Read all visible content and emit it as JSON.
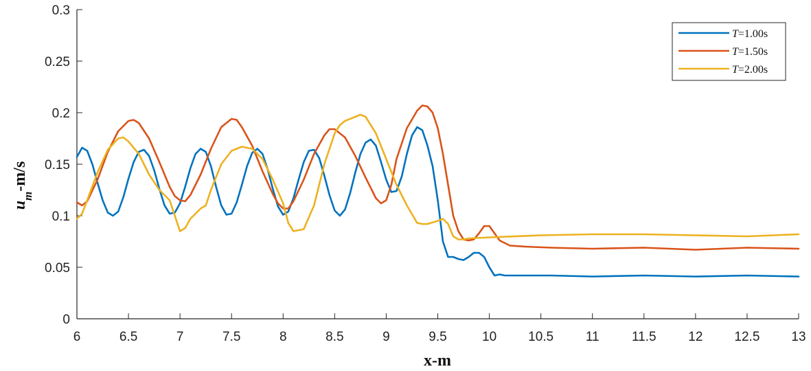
{
  "chart_data": {
    "type": "line",
    "title": "",
    "xlabel": "x-m",
    "ylabel": {
      "main": "u",
      "sub": "m",
      "unit": "-m/s"
    },
    "xlim": [
      6,
      13
    ],
    "ylim": [
      0,
      0.3
    ],
    "x_ticks": [
      "6",
      "6.5",
      "7",
      "7.5",
      "8",
      "8.5",
      "9",
      "9.5",
      "10",
      "10.5",
      "11",
      "11.5",
      "12",
      "12.5",
      "13"
    ],
    "y_ticks": [
      "0",
      "0.05",
      "0.1",
      "0.15",
      "0.2",
      "0.25",
      "0.3"
    ],
    "grid": false,
    "legend_position": "top-right",
    "series": [
      {
        "name": "T=1.00s",
        "legend_var": "T",
        "legend_val": "=1.00s",
        "color": "#0072BD",
        "points": [
          [
            6.0,
            0.157
          ],
          [
            6.05,
            0.166
          ],
          [
            6.1,
            0.163
          ],
          [
            6.15,
            0.15
          ],
          [
            6.2,
            0.132
          ],
          [
            6.25,
            0.115
          ],
          [
            6.3,
            0.103
          ],
          [
            6.35,
            0.1
          ],
          [
            6.4,
            0.104
          ],
          [
            6.45,
            0.118
          ],
          [
            6.5,
            0.136
          ],
          [
            6.55,
            0.152
          ],
          [
            6.6,
            0.162
          ],
          [
            6.65,
            0.164
          ],
          [
            6.7,
            0.158
          ],
          [
            6.75,
            0.144
          ],
          [
            6.8,
            0.126
          ],
          [
            6.85,
            0.11
          ],
          [
            6.9,
            0.102
          ],
          [
            6.95,
            0.103
          ],
          [
            7.0,
            0.112
          ],
          [
            7.05,
            0.128
          ],
          [
            7.1,
            0.146
          ],
          [
            7.15,
            0.16
          ],
          [
            7.2,
            0.165
          ],
          [
            7.25,
            0.162
          ],
          [
            7.3,
            0.148
          ],
          [
            7.35,
            0.128
          ],
          [
            7.4,
            0.11
          ],
          [
            7.45,
            0.101
          ],
          [
            7.5,
            0.102
          ],
          [
            7.55,
            0.113
          ],
          [
            7.6,
            0.13
          ],
          [
            7.65,
            0.148
          ],
          [
            7.7,
            0.161
          ],
          [
            7.75,
            0.165
          ],
          [
            7.8,
            0.16
          ],
          [
            7.85,
            0.145
          ],
          [
            7.9,
            0.126
          ],
          [
            7.95,
            0.109
          ],
          [
            8.0,
            0.101
          ],
          [
            8.05,
            0.104
          ],
          [
            8.1,
            0.117
          ],
          [
            8.15,
            0.135
          ],
          [
            8.2,
            0.152
          ],
          [
            8.25,
            0.163
          ],
          [
            8.3,
            0.164
          ],
          [
            8.35,
            0.156
          ],
          [
            8.4,
            0.139
          ],
          [
            8.45,
            0.12
          ],
          [
            8.5,
            0.105
          ],
          [
            8.55,
            0.1
          ],
          [
            8.6,
            0.106
          ],
          [
            8.65,
            0.122
          ],
          [
            8.7,
            0.142
          ],
          [
            8.75,
            0.16
          ],
          [
            8.8,
            0.171
          ],
          [
            8.85,
            0.174
          ],
          [
            8.9,
            0.168
          ],
          [
            8.95,
            0.152
          ],
          [
            9.0,
            0.135
          ],
          [
            9.05,
            0.123
          ],
          [
            9.1,
            0.124
          ],
          [
            9.15,
            0.138
          ],
          [
            9.2,
            0.16
          ],
          [
            9.25,
            0.178
          ],
          [
            9.3,
            0.186
          ],
          [
            9.35,
            0.183
          ],
          [
            9.4,
            0.168
          ],
          [
            9.45,
            0.148
          ],
          [
            9.5,
            0.115
          ],
          [
            9.55,
            0.075
          ],
          [
            9.6,
            0.06
          ],
          [
            9.65,
            0.06
          ],
          [
            9.7,
            0.058
          ],
          [
            9.75,
            0.057
          ],
          [
            9.8,
            0.06
          ],
          [
            9.85,
            0.064
          ],
          [
            9.9,
            0.064
          ],
          [
            9.95,
            0.06
          ],
          [
            10.0,
            0.05
          ],
          [
            10.05,
            0.042
          ],
          [
            10.1,
            0.043
          ],
          [
            10.15,
            0.042
          ],
          [
            10.3,
            0.042
          ],
          [
            10.6,
            0.042
          ],
          [
            11.0,
            0.041
          ],
          [
            11.5,
            0.042
          ],
          [
            12.0,
            0.041
          ],
          [
            12.5,
            0.042
          ],
          [
            13.0,
            0.041
          ]
        ]
      },
      {
        "name": "T=1.50s",
        "legend_var": "T",
        "legend_val": "=1.50s",
        "color": "#D95319",
        "points": [
          [
            6.0,
            0.113
          ],
          [
            6.05,
            0.11
          ],
          [
            6.1,
            0.114
          ],
          [
            6.2,
            0.135
          ],
          [
            6.3,
            0.162
          ],
          [
            6.4,
            0.182
          ],
          [
            6.5,
            0.192
          ],
          [
            6.55,
            0.193
          ],
          [
            6.6,
            0.19
          ],
          [
            6.7,
            0.175
          ],
          [
            6.8,
            0.152
          ],
          [
            6.9,
            0.128
          ],
          [
            6.95,
            0.119
          ],
          [
            7.0,
            0.115
          ],
          [
            7.05,
            0.114
          ],
          [
            7.1,
            0.12
          ],
          [
            7.2,
            0.14
          ],
          [
            7.3,
            0.165
          ],
          [
            7.4,
            0.186
          ],
          [
            7.5,
            0.194
          ],
          [
            7.55,
            0.193
          ],
          [
            7.6,
            0.186
          ],
          [
            7.7,
            0.168
          ],
          [
            7.8,
            0.143
          ],
          [
            7.9,
            0.121
          ],
          [
            7.95,
            0.112
          ],
          [
            8.0,
            0.107
          ],
          [
            8.05,
            0.107
          ],
          [
            8.1,
            0.114
          ],
          [
            8.2,
            0.135
          ],
          [
            8.3,
            0.16
          ],
          [
            8.4,
            0.178
          ],
          [
            8.45,
            0.184
          ],
          [
            8.5,
            0.184
          ],
          [
            8.6,
            0.176
          ],
          [
            8.7,
            0.158
          ],
          [
            8.8,
            0.137
          ],
          [
            8.9,
            0.117
          ],
          [
            8.95,
            0.112
          ],
          [
            9.0,
            0.115
          ],
          [
            9.05,
            0.13
          ],
          [
            9.1,
            0.155
          ],
          [
            9.2,
            0.185
          ],
          [
            9.3,
            0.202
          ],
          [
            9.35,
            0.207
          ],
          [
            9.4,
            0.206
          ],
          [
            9.45,
            0.2
          ],
          [
            9.5,
            0.185
          ],
          [
            9.55,
            0.16
          ],
          [
            9.6,
            0.13
          ],
          [
            9.65,
            0.1
          ],
          [
            9.7,
            0.085
          ],
          [
            9.75,
            0.077
          ],
          [
            9.8,
            0.076
          ],
          [
            9.85,
            0.077
          ],
          [
            9.9,
            0.083
          ],
          [
            9.95,
            0.09
          ],
          [
            10.0,
            0.09
          ],
          [
            10.05,
            0.083
          ],
          [
            10.1,
            0.076
          ],
          [
            10.2,
            0.071
          ],
          [
            10.35,
            0.07
          ],
          [
            10.6,
            0.069
          ],
          [
            11.0,
            0.068
          ],
          [
            11.5,
            0.069
          ],
          [
            12.0,
            0.067
          ],
          [
            12.5,
            0.069
          ],
          [
            13.0,
            0.068
          ]
        ]
      },
      {
        "name": "T=2.00s",
        "legend_var": "T",
        "legend_val": "=2.00s",
        "color": "#EDB120",
        "points": [
          [
            6.0,
            0.097
          ],
          [
            6.05,
            0.102
          ],
          [
            6.1,
            0.115
          ],
          [
            6.2,
            0.142
          ],
          [
            6.3,
            0.164
          ],
          [
            6.4,
            0.175
          ],
          [
            6.45,
            0.176
          ],
          [
            6.5,
            0.172
          ],
          [
            6.6,
            0.16
          ],
          [
            6.7,
            0.14
          ],
          [
            6.8,
            0.125
          ],
          [
            6.9,
            0.115
          ],
          [
            6.95,
            0.1
          ],
          [
            7.0,
            0.085
          ],
          [
            7.05,
            0.088
          ],
          [
            7.1,
            0.097
          ],
          [
            7.2,
            0.107
          ],
          [
            7.25,
            0.11
          ],
          [
            7.3,
            0.125
          ],
          [
            7.4,
            0.15
          ],
          [
            7.5,
            0.163
          ],
          [
            7.6,
            0.167
          ],
          [
            7.7,
            0.165
          ],
          [
            7.8,
            0.155
          ],
          [
            7.9,
            0.135
          ],
          [
            8.0,
            0.112
          ],
          [
            8.05,
            0.093
          ],
          [
            8.1,
            0.085
          ],
          [
            8.2,
            0.087
          ],
          [
            8.3,
            0.11
          ],
          [
            8.4,
            0.15
          ],
          [
            8.5,
            0.18
          ],
          [
            8.55,
            0.188
          ],
          [
            8.6,
            0.192
          ],
          [
            8.7,
            0.196
          ],
          [
            8.75,
            0.198
          ],
          [
            8.8,
            0.196
          ],
          [
            8.9,
            0.18
          ],
          [
            9.0,
            0.155
          ],
          [
            9.1,
            0.13
          ],
          [
            9.2,
            0.11
          ],
          [
            9.3,
            0.093
          ],
          [
            9.35,
            0.092
          ],
          [
            9.4,
            0.092
          ],
          [
            9.5,
            0.095
          ],
          [
            9.55,
            0.097
          ],
          [
            9.6,
            0.092
          ],
          [
            9.65,
            0.08
          ],
          [
            9.7,
            0.077
          ],
          [
            9.75,
            0.077
          ],
          [
            9.8,
            0.078
          ],
          [
            10.0,
            0.079
          ],
          [
            10.5,
            0.081
          ],
          [
            11.0,
            0.082
          ],
          [
            11.5,
            0.082
          ],
          [
            12.0,
            0.081
          ],
          [
            12.5,
            0.08
          ],
          [
            13.0,
            0.082
          ]
        ]
      }
    ]
  }
}
